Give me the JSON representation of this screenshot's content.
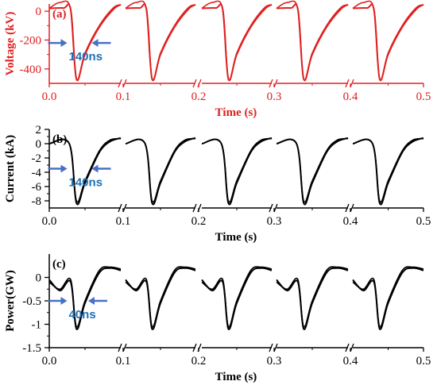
{
  "colors": {
    "voltage": "#e02020",
    "black": "#000000",
    "annotation": "#1f6fb4",
    "arrow": "#4472c4"
  },
  "chart_data": [
    {
      "type": "line",
      "panel_label": "(a)",
      "ylabel": "Voltage (kV)",
      "xlabel": "Time (s)",
      "color": "voltage",
      "ylim": [
        -500,
        50
      ],
      "yticks": [
        0,
        -200,
        -400
      ],
      "xtick_labels": [
        "0.0",
        "0.1",
        "0.2",
        "0.3",
        "0.4",
        "0.5"
      ],
      "segments": [
        [
          0.0,
          0.1
        ],
        [
          0.1,
          0.2
        ],
        [
          0.2,
          0.3
        ],
        [
          0.3,
          0.4
        ],
        [
          0.4,
          0.5
        ]
      ],
      "pulse_shape": {
        "points": [
          [
            0.0,
            20
          ],
          [
            0.2,
            22
          ],
          [
            0.3,
            8
          ],
          [
            0.38,
            -470
          ],
          [
            0.5,
            -300
          ],
          [
            0.7,
            -110
          ],
          [
            0.9,
            15
          ],
          [
            1.0,
            45
          ]
        ],
        "alt": [
          [
            0.0,
            20
          ],
          [
            0.15,
            60
          ],
          [
            0.3,
            15
          ],
          [
            0.38,
            -470
          ],
          [
            0.5,
            -290
          ],
          [
            0.7,
            -100
          ],
          [
            0.9,
            25
          ],
          [
            1.0,
            45
          ]
        ]
      },
      "annotation": {
        "text": "140ns",
        "y": -220,
        "x1": 0.25,
        "x2": 0.55
      }
    },
    {
      "type": "line",
      "panel_label": "(b)",
      "ylabel": "Current (kA)",
      "xlabel": "Time (s)",
      "color": "black",
      "ylim": [
        -9,
        2
      ],
      "yticks": [
        2,
        0,
        -2,
        -4,
        -6,
        -8
      ],
      "xtick_labels": [
        "0.0",
        "0.1",
        "0.2",
        "0.3",
        "0.4",
        "0.5"
      ],
      "segments": [
        [
          0.0,
          0.1
        ],
        [
          0.1,
          0.2
        ],
        [
          0.2,
          0.3
        ],
        [
          0.3,
          0.4
        ],
        [
          0.4,
          0.5
        ]
      ],
      "pulse_shape": {
        "points": [
          [
            0.0,
            0
          ],
          [
            0.28,
            0
          ],
          [
            0.38,
            -8.3
          ],
          [
            0.5,
            -5.5
          ],
          [
            0.7,
            -1.2
          ],
          [
            0.85,
            0.3
          ],
          [
            1.0,
            0.8
          ]
        ],
        "alt": [
          [
            0.0,
            0
          ],
          [
            0.28,
            0
          ],
          [
            0.38,
            -8.0
          ],
          [
            0.5,
            -5.2
          ],
          [
            0.7,
            -1.0
          ],
          [
            0.85,
            0.5
          ],
          [
            1.0,
            0.7
          ]
        ]
      },
      "annotation": {
        "text": "140ns",
        "y": -3.5,
        "x1": 0.25,
        "x2": 0.55
      }
    },
    {
      "type": "line",
      "panel_label": "(c)",
      "ylabel": "Power(GW)",
      "xlabel": "Time (s)",
      "color": "black",
      "ylim": [
        -1.5,
        0.5
      ],
      "yticks": [
        0,
        -0.5,
        -1,
        -1.5
      ],
      "ytick_labels": [
        "0",
        "-0.5",
        "-1",
        "-1.5"
      ],
      "xtick_labels": [
        "0.0",
        "0.1",
        "0.2",
        "0.3",
        "0.4",
        "0.5"
      ],
      "segments": [
        [
          0.0,
          0.1
        ],
        [
          0.1,
          0.2
        ],
        [
          0.2,
          0.3
        ],
        [
          0.3,
          0.4
        ],
        [
          0.4,
          0.5
        ]
      ],
      "pulse_shape": {
        "points": [
          [
            0.0,
            -0.05
          ],
          [
            0.15,
            -0.28
          ],
          [
            0.3,
            -0.1
          ],
          [
            0.38,
            -1.1
          ],
          [
            0.5,
            -0.55
          ],
          [
            0.7,
            0.1
          ],
          [
            0.85,
            0.2
          ],
          [
            1.0,
            0.15
          ]
        ],
        "alt": [
          [
            0.0,
            -0.1
          ],
          [
            0.15,
            -0.25
          ],
          [
            0.3,
            -0.05
          ],
          [
            0.38,
            -1.05
          ],
          [
            0.5,
            -0.5
          ],
          [
            0.7,
            0.15
          ],
          [
            0.85,
            0.22
          ],
          [
            1.0,
            0.18
          ]
        ]
      },
      "annotation": {
        "text": "40ns",
        "y": -0.5,
        "x1": 0.25,
        "x2": 0.5
      }
    }
  ]
}
